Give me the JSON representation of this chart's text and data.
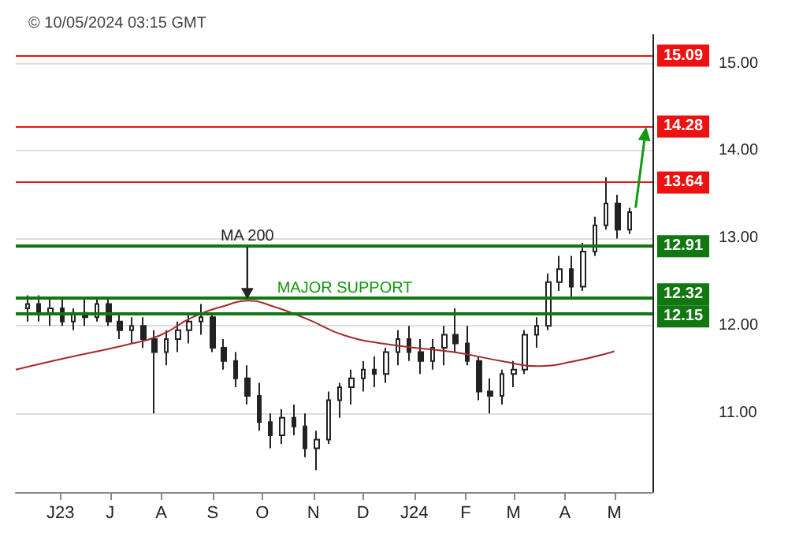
{
  "chart_data": {
    "type": "candlestick",
    "x": [
      "2023-05-12",
      "2023-05-19",
      "2023-05-26",
      "2023-06-02",
      "2023-06-09",
      "2023-06-16",
      "2023-06-23",
      "2023-06-30",
      "2023-07-07",
      "2023-07-14",
      "2023-07-21",
      "2023-07-28",
      "2023-08-04",
      "2023-08-11",
      "2023-08-18",
      "2023-08-25",
      "2023-09-01",
      "2023-09-08",
      "2023-09-15",
      "2023-09-22",
      "2023-09-29",
      "2023-10-06",
      "2023-10-13",
      "2023-10-20",
      "2023-10-27",
      "2023-11-03",
      "2023-11-10",
      "2023-11-17",
      "2023-11-24",
      "2023-12-01",
      "2023-12-08",
      "2023-12-15",
      "2023-12-22",
      "2023-12-29",
      "2024-01-05",
      "2024-01-12",
      "2024-01-19",
      "2024-01-26",
      "2024-02-02",
      "2024-02-09",
      "2024-02-16",
      "2024-02-23",
      "2024-03-01",
      "2024-03-08",
      "2024-03-15",
      "2024-03-22",
      "2024-03-29",
      "2024-04-05",
      "2024-04-12",
      "2024-04-19",
      "2024-04-26",
      "2024-05-03",
      "2024-05-10"
    ],
    "ohlc": [
      [
        12.2,
        12.35,
        12.05,
        12.25
      ],
      [
        12.25,
        12.35,
        12.05,
        12.15
      ],
      [
        12.15,
        12.3,
        12.0,
        12.2
      ],
      [
        12.2,
        12.3,
        12.0,
        12.05
      ],
      [
        12.05,
        12.2,
        11.95,
        12.15
      ],
      [
        12.15,
        12.3,
        12.0,
        12.1
      ],
      [
        12.1,
        12.3,
        12.05,
        12.25
      ],
      [
        12.25,
        12.3,
        12.0,
        12.05
      ],
      [
        12.05,
        12.15,
        11.85,
        11.95
      ],
      [
        11.95,
        12.1,
        11.8,
        12.0
      ],
      [
        12.0,
        12.1,
        11.75,
        11.85
      ],
      [
        11.85,
        11.95,
        11.0,
        11.7
      ],
      [
        11.7,
        11.95,
        11.55,
        11.85
      ],
      [
        11.85,
        12.05,
        11.7,
        11.95
      ],
      [
        11.95,
        12.15,
        11.8,
        12.05
      ],
      [
        12.05,
        12.25,
        11.9,
        12.1
      ],
      [
        12.1,
        12.15,
        11.7,
        11.75
      ],
      [
        11.75,
        11.85,
        11.5,
        11.6
      ],
      [
        11.6,
        11.7,
        11.3,
        11.4
      ],
      [
        11.4,
        11.55,
        11.1,
        11.2
      ],
      [
        11.2,
        11.35,
        10.8,
        10.9
      ],
      [
        10.9,
        11.0,
        10.6,
        10.75
      ],
      [
        10.75,
        11.05,
        10.65,
        10.95
      ],
      [
        10.95,
        11.1,
        10.75,
        10.85
      ],
      [
        10.85,
        11.0,
        10.5,
        10.6
      ],
      [
        10.6,
        10.8,
        10.35,
        10.7
      ],
      [
        10.7,
        11.25,
        10.65,
        11.15
      ],
      [
        11.15,
        11.35,
        10.95,
        11.3
      ],
      [
        11.3,
        11.5,
        11.1,
        11.4
      ],
      [
        11.4,
        11.6,
        11.25,
        11.5
      ],
      [
        11.5,
        11.65,
        11.3,
        11.45
      ],
      [
        11.45,
        11.75,
        11.35,
        11.7
      ],
      [
        11.7,
        11.95,
        11.55,
        11.85
      ],
      [
        11.85,
        12.0,
        11.6,
        11.7
      ],
      [
        11.7,
        11.85,
        11.45,
        11.6
      ],
      [
        11.6,
        11.85,
        11.5,
        11.75
      ],
      [
        11.75,
        12.0,
        11.55,
        11.9
      ],
      [
        11.9,
        12.2,
        11.7,
        11.8
      ],
      [
        11.8,
        12.0,
        11.55,
        11.6
      ],
      [
        11.6,
        11.65,
        11.15,
        11.25
      ],
      [
        11.25,
        11.4,
        11.0,
        11.2
      ],
      [
        11.2,
        11.5,
        11.1,
        11.45
      ],
      [
        11.45,
        11.6,
        11.3,
        11.5
      ],
      [
        11.5,
        11.95,
        11.45,
        11.9
      ],
      [
        11.9,
        12.1,
        11.75,
        12.0
      ],
      [
        12.0,
        12.6,
        11.95,
        12.5
      ],
      [
        12.5,
        12.8,
        12.4,
        12.65
      ],
      [
        12.65,
        12.8,
        12.3,
        12.45
      ],
      [
        12.45,
        12.95,
        12.4,
        12.85
      ],
      [
        12.85,
        13.25,
        12.8,
        13.15
      ],
      [
        13.15,
        13.7,
        13.1,
        13.4
      ],
      [
        13.4,
        13.5,
        13.0,
        13.1
      ],
      [
        13.1,
        13.35,
        13.05,
        13.3
      ]
    ],
    "color": "#222222",
    "series": [
      {
        "type": "line",
        "color": "#a52a2a",
        "x": [
          "2023-05-05",
          "2023-06-01",
          "2023-07-10",
          "2023-07-31",
          "2023-08-20",
          "2023-09-10",
          "2023-09-22",
          "2023-10-05",
          "2023-10-28",
          "2023-11-20",
          "2023-12-20",
          "2024-01-25",
          "2024-02-25",
          "2024-03-15",
          "2024-04-05",
          "2024-05-01"
        ],
        "values": [
          11.5,
          11.62,
          11.78,
          11.89,
          12.1,
          12.24,
          12.29,
          12.24,
          12.08,
          11.89,
          11.78,
          11.7,
          11.59,
          11.54,
          11.59,
          11.71
        ]
      }
    ],
    "xlim": [
      "2023-05-05",
      "2024-05-24"
    ],
    "xticks": [
      {
        "value": "2023-06-01",
        "label": "J23"
      },
      {
        "value": "2023-07-01",
        "label": "J"
      },
      {
        "value": "2023-08-01",
        "label": "A"
      },
      {
        "value": "2023-09-01",
        "label": "S"
      },
      {
        "value": "2023-10-01",
        "label": "O"
      },
      {
        "value": "2023-11-01",
        "label": "N"
      },
      {
        "value": "2023-12-01",
        "label": "D"
      },
      {
        "value": "2024-01-01",
        "label": "J24"
      },
      {
        "value": "2024-02-01",
        "label": "F"
      },
      {
        "value": "2024-03-01",
        "label": "M"
      },
      {
        "value": "2024-04-01",
        "label": "A"
      },
      {
        "value": "2024-05-01",
        "label": "M"
      }
    ],
    "ylim": [
      10.1,
      15.33
    ],
    "yticks": [
      {
        "value": 11,
        "label": "11.00"
      },
      {
        "value": 12,
        "label": "12.00"
      },
      {
        "value": 13,
        "label": "13.00"
      },
      {
        "value": 14,
        "label": "14.00"
      },
      {
        "value": 15,
        "label": "15.00"
      }
    ],
    "grid": "y",
    "ref_lines": [
      {
        "axis": "y",
        "value": 15.09,
        "label": "15.09",
        "color": "#ee1111"
      },
      {
        "axis": "y",
        "value": 14.28,
        "label": "14.28",
        "color": "#ee1111"
      },
      {
        "axis": "y",
        "value": 13.64,
        "label": "13.64",
        "color": "#ee1111"
      },
      {
        "axis": "y",
        "value": 12.91,
        "label": "12.91",
        "color": "#117711"
      },
      {
        "axis": "y",
        "value": 12.32,
        "label": "12.32",
        "color": "#117711"
      },
      {
        "axis": "y",
        "value": 12.15,
        "label": "12.15",
        "color": "#117711"
      }
    ],
    "annotations": [
      "© 10/05/2024 03:15 GMT",
      {
        "text": "MA 200",
        "x": "2023-09-22",
        "y": 12.29
      },
      {
        "text": "MAJOR SUPPORT",
        "x": "2023-11-20",
        "y": 12.15
      }
    ]
  }
}
